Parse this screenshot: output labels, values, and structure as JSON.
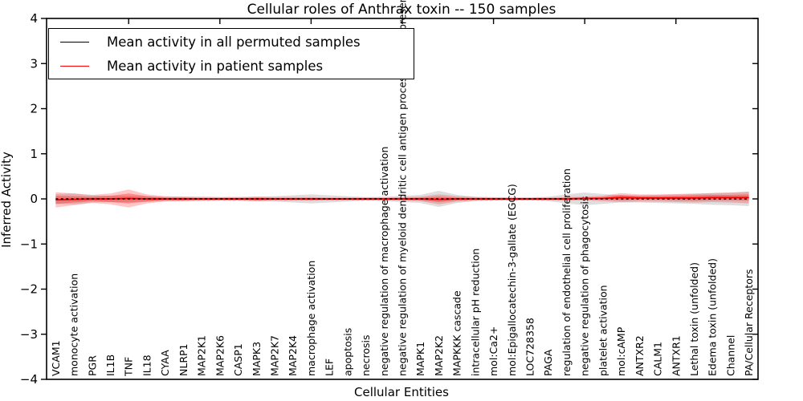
{
  "title": "Cellular roles of Anthrax toxin -- 150 samples",
  "legend": {
    "items": [
      {
        "label": "Mean activity in all permuted samples",
        "color": "#000000"
      },
      {
        "label": "Mean activity in patient samples",
        "color": "#ff0000"
      }
    ]
  },
  "chart_data": {
    "type": "line",
    "title": "Cellular roles of Anthrax toxin -- 150 samples",
    "xlabel": "Cellular Entities",
    "ylabel": "Inferred Activity",
    "ylim": [
      -4,
      4
    ],
    "yticks": [
      4,
      3,
      2,
      1,
      0,
      -1,
      -2,
      -3,
      -4
    ],
    "grid": false,
    "legend_position": "upper left",
    "x_tick_every": 5,
    "categories": [
      "VCAM1",
      "monocyte activation",
      "PGR",
      "IL1B",
      "TNF",
      "IL18",
      "CYAA",
      "NLRP1",
      "MAP2K1",
      "MAP2K6",
      "CASP1",
      "MAPK3",
      "MAP2K7",
      "MAP2K4",
      "macrophage activation",
      "LEF",
      "apoptosis",
      "necrosis",
      "negative regulation of macrophage activation",
      "negative regulation of myeloid dendritic cell antigen processing and presentation",
      "MAPK1",
      "MAP2K2",
      "MAPKKK cascade",
      "intracellular pH reduction",
      "mol:Ca2+",
      "mol:Epigallocatechin-3-gallate (EGCG)",
      "LOC728358",
      "PAGA",
      "regulation of endothelial cell proliferation",
      "negative regulation of phagocytosis",
      "platelet activation",
      "mol:cAMP",
      "ANTXR2",
      "CALM1",
      "ANTXR1",
      "Lethal toxin (unfolded)",
      "Edema toxin (unfolded)",
      "Channel",
      "PA/Cellular Receptors"
    ],
    "series": [
      {
        "name": "Mean activity in all permuted samples",
        "color": "#000000",
        "style": "dashed",
        "values": [
          0,
          0,
          0,
          0,
          0,
          0,
          0,
          0,
          0,
          0,
          0,
          0,
          0,
          0,
          0,
          0,
          0,
          0,
          0,
          0,
          0,
          0,
          0,
          0,
          0,
          0,
          0,
          0,
          0,
          0,
          0,
          0,
          0,
          0,
          0,
          0,
          0,
          0,
          0
        ]
      },
      {
        "name": "Mean activity in patient samples",
        "color": "#ff0000",
        "style": "solid",
        "values": [
          -0.02,
          -0.01,
          0,
          0,
          0.01,
          0,
          0,
          0,
          0,
          0,
          0,
          0,
          0,
          0,
          0,
          0,
          0,
          0,
          0,
          0,
          0,
          -0.01,
          0,
          0,
          0,
          0,
          0,
          0,
          0,
          0.01,
          0.01,
          0.03,
          0.02,
          0.02,
          0.02,
          0.02,
          0.03,
          0.03,
          0.03
        ]
      }
    ],
    "bands": [
      {
        "name": "permuted-samples-band",
        "color": "#000000",
        "opacity": 0.13,
        "center": 0,
        "half_widths": [
          0.11,
          0.12,
          0.08,
          0.07,
          0.07,
          0.06,
          0.05,
          0.05,
          0.05,
          0.04,
          0.04,
          0.05,
          0.06,
          0.08,
          0.1,
          0.08,
          0.06,
          0.04,
          0.05,
          0.07,
          0.09,
          0.18,
          0.09,
          0.05,
          0.04,
          0.03,
          0.03,
          0.05,
          0.1,
          0.14,
          0.11,
          0.08,
          0.08,
          0.09,
          0.1,
          0.11,
          0.13,
          0.14,
          0.16
        ]
      },
      {
        "name": "patient-samples-band-outer",
        "color": "#ff0000",
        "opacity": 0.22,
        "center": 0,
        "half_widths": [
          0.17,
          0.13,
          0.09,
          0.12,
          0.2,
          0.1,
          0.06,
          0.05,
          0.04,
          0.04,
          0.04,
          0.05,
          0.04,
          0.04,
          0.04,
          0.03,
          0.03,
          0.03,
          0.03,
          0.04,
          0.05,
          0.11,
          0.06,
          0.04,
          0.03,
          0.03,
          0.03,
          0.03,
          0.04,
          0.04,
          0.06,
          0.1,
          0.08,
          0.08,
          0.09,
          0.1,
          0.1,
          0.11,
          0.13
        ]
      },
      {
        "name": "patient-samples-band-inner",
        "color": "#ff0000",
        "opacity": 0.3,
        "center": 0,
        "half_widths": [
          0.09,
          0.07,
          0.05,
          0.07,
          0.11,
          0.06,
          0.03,
          0.03,
          0.02,
          0.02,
          0.02,
          0.03,
          0.02,
          0.02,
          0.02,
          0.02,
          0.02,
          0.02,
          0.02,
          0.02,
          0.03,
          0.06,
          0.03,
          0.02,
          0.02,
          0.02,
          0.02,
          0.02,
          0.02,
          0.02,
          0.03,
          0.06,
          0.04,
          0.04,
          0.05,
          0.06,
          0.06,
          0.06,
          0.07
        ]
      }
    ]
  }
}
